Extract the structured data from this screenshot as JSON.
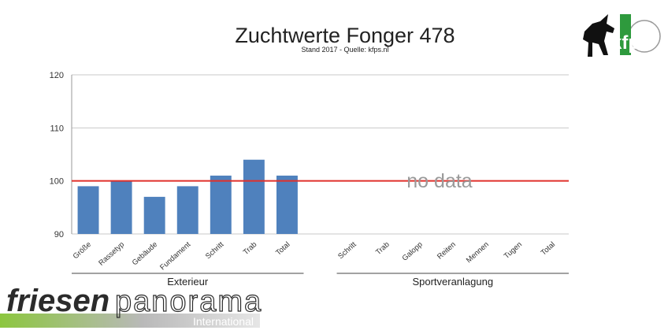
{
  "title": "Zuchtwerte Fonger 478",
  "subtitle": "Stand 2017 - Quelle: kfps.nl",
  "no_data_text": "no data",
  "reference_line": {
    "value": 100,
    "color": "#e0302b"
  },
  "chart_data": {
    "type": "bar",
    "title": "Zuchtwerte Fonger 478",
    "ylim": [
      90,
      120
    ],
    "yticks": [
      90,
      100,
      110,
      120
    ],
    "grid": true,
    "bar_color": "#4f81bd",
    "groups": [
      {
        "name": "Exterieur",
        "categories": [
          "Größe",
          "Rassetyp",
          "Gebäude",
          "Fundament",
          "Schritt",
          "Trab",
          "Total"
        ],
        "values": [
          99,
          100,
          97,
          99,
          101,
          104,
          101
        ]
      },
      {
        "name": "Sportveranlagung",
        "categories": [
          "Schritt",
          "Trab",
          "Galopp",
          "Reiten",
          "Mennen",
          "Tugen",
          "Total"
        ],
        "values": [
          null,
          null,
          null,
          null,
          null,
          null,
          null
        ]
      }
    ]
  },
  "logo_kfp": {
    "text": "kfp"
  },
  "brand": {
    "part1": "friesen",
    "part2": "panorama",
    "part3": "International",
    "bar_color": "#8cc63f"
  }
}
